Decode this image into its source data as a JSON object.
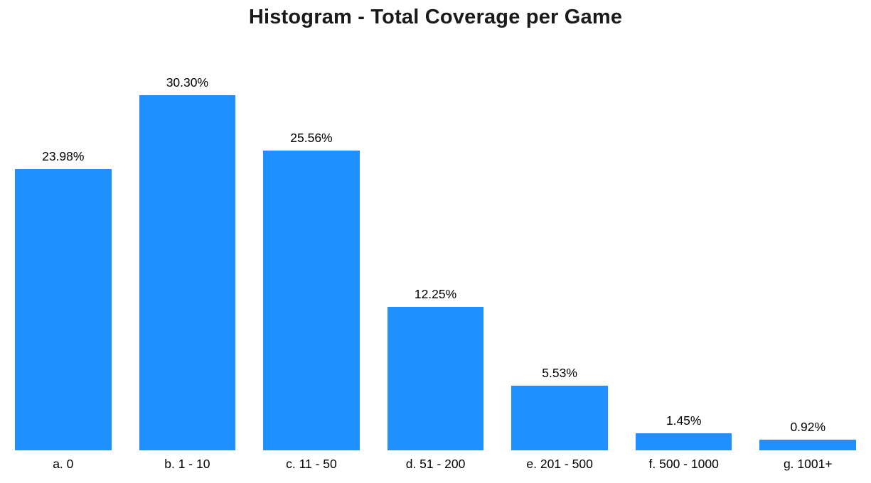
{
  "chart_data": {
    "type": "bar",
    "title": "Histogram - Total Coverage per Game",
    "categories": [
      "a. 0",
      "b. 1 - 10",
      "c. 11 - 50",
      "d. 51 - 200",
      "e. 201 - 500",
      "f. 500 - 1000",
      "g. 1001+"
    ],
    "values": [
      23.98,
      30.3,
      25.56,
      12.25,
      5.53,
      1.45,
      0.92
    ],
    "value_labels": [
      "23.98%",
      "30.30%",
      "25.56%",
      "12.25%",
      "5.53%",
      "1.45%",
      "0.92%"
    ],
    "xlabel": "",
    "ylabel": "",
    "ylim": [
      0,
      30.3
    ],
    "grid": false,
    "legend": "none",
    "bar_color": "#1e90ff",
    "background_color": "#ffffff",
    "title_color": "#1a1a1a",
    "label_color": "#000000"
  }
}
